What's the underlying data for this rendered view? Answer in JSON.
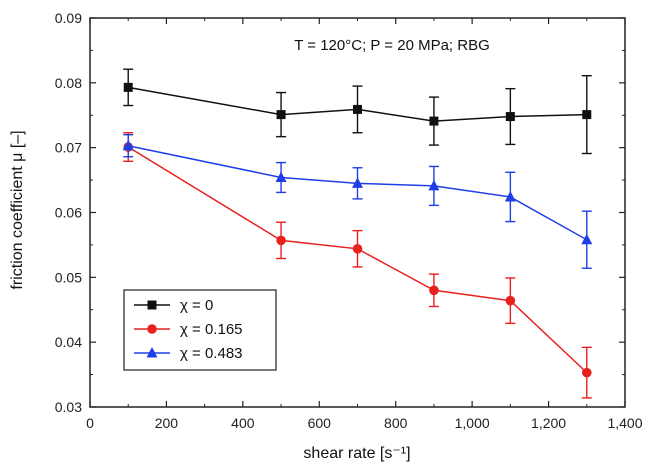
{
  "chart_data": {
    "type": "line",
    "title": "",
    "annotation": "T = 120°C; P = 20 MPa; RBG",
    "xlabel": "shear rate [s⁻¹]",
    "ylabel": "friction coefficient μ [–]",
    "xlim": [
      0,
      1400
    ],
    "ylim": [
      0.03,
      0.09
    ],
    "xticks": [
      0,
      200,
      400,
      600,
      800,
      1000,
      1200,
      1400
    ],
    "xtick_labels": [
      "0",
      "200",
      "400",
      "600",
      "800",
      "1,000",
      "1,200",
      "1,400"
    ],
    "yticks": [
      0.03,
      0.04,
      0.05,
      0.06,
      0.07,
      0.08,
      0.09
    ],
    "ytick_labels": [
      "0.03",
      "0.04",
      "0.05",
      "0.06",
      "0.07",
      "0.08",
      "0.09"
    ],
    "grid": false,
    "legend_position": "bottom-left",
    "series": [
      {
        "name": "χ = 0",
        "color": "#111111",
        "marker": "square",
        "x": [
          100,
          500,
          700,
          900,
          1100,
          1300
        ],
        "y": [
          0.0793,
          0.0751,
          0.0759,
          0.0741,
          0.0748,
          0.0751
        ],
        "err": [
          0.0028,
          0.0034,
          0.0036,
          0.0037,
          0.0043,
          0.006
        ]
      },
      {
        "name": "χ = 0.165",
        "color": "#e8201e",
        "marker": "circle",
        "x": [
          100,
          500,
          700,
          900,
          1100,
          1300
        ],
        "y": [
          0.0701,
          0.0557,
          0.0544,
          0.048,
          0.0464,
          0.0353
        ],
        "err": [
          0.0022,
          0.0028,
          0.0028,
          0.0025,
          0.0035,
          0.0039
        ]
      },
      {
        "name": "χ = 0.483",
        "color": "#1f3fe6",
        "marker": "triangle",
        "x": [
          100,
          500,
          700,
          900,
          1100,
          1300
        ],
        "y": [
          0.0703,
          0.0654,
          0.0645,
          0.0641,
          0.0624,
          0.0558
        ],
        "err": [
          0.0017,
          0.0023,
          0.0024,
          0.003,
          0.0038,
          0.0044
        ]
      }
    ]
  }
}
